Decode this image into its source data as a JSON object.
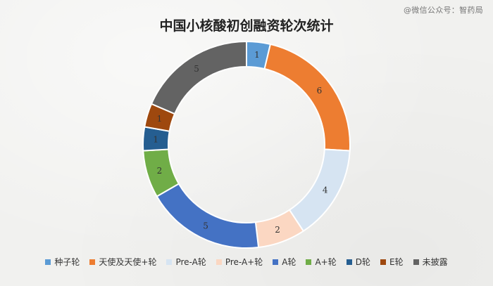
{
  "watermark": "@微信公众号：智药局",
  "chart_data": {
    "type": "pie",
    "title": "中国小核酸初创融资轮次统计",
    "donut": true,
    "categories": [
      "种子轮",
      "天使及天使+轮",
      "Pre-A轮",
      "Pre-A+轮",
      "A轮",
      "A+轮",
      "D轮",
      "E轮",
      "未披露"
    ],
    "values": [
      1,
      6,
      4,
      2,
      5,
      2,
      1,
      1,
      5
    ],
    "colors": [
      "#5b9bd5",
      "#ed7d31",
      "#d6e4f2",
      "#fbd7c2",
      "#4472c4",
      "#70ad47",
      "#255e91",
      "#9e480e",
      "#636363"
    ],
    "legend_position": "bottom"
  }
}
